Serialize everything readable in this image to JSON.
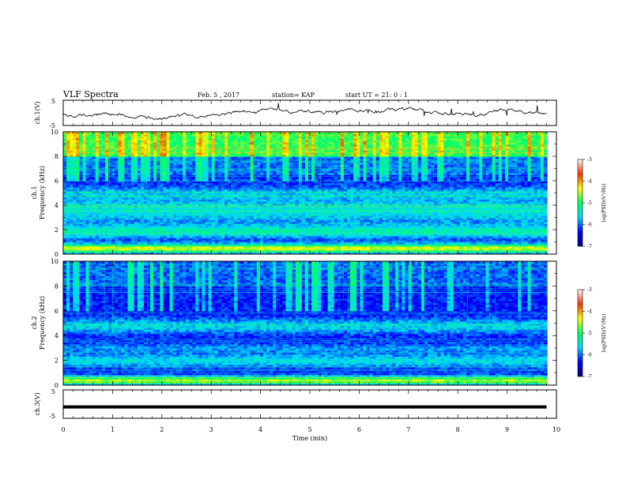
{
  "header": {
    "title": "VLF Spectra",
    "date": "Feb. 5 , 2017",
    "station": "station= KAP",
    "start_time": "start UT =   21: 0  : 1"
  },
  "chart_data": [
    {
      "type": "line",
      "ylabel": "ch.1(V)",
      "ylim": [
        -5,
        5
      ],
      "yticks": [
        "5",
        "-5"
      ],
      "xlim": [
        0,
        10
      ]
    },
    {
      "type": "heatmap",
      "ylabel_top": "ch.1",
      "ylabel": "Frequency (kHz)",
      "ylim": [
        0,
        10
      ],
      "yticks": [
        "0",
        "2",
        "4",
        "6",
        "8",
        "10"
      ],
      "xlim": [
        0,
        10
      ],
      "colorbar": {
        "label": "log(PSD)(V²/Hz)",
        "range": [
          -7,
          -3
        ],
        "ticks": [
          "-3",
          "-4",
          "-5",
          "-6",
          "-7"
        ],
        "colors": [
          "#00007f",
          "#0000ff",
          "#00d8ff",
          "#00ff66",
          "#ffff00",
          "#ff3300",
          "#ffffff"
        ]
      }
    },
    {
      "type": "heatmap",
      "ylabel_top": "ch.2",
      "ylabel": "Frequency (kHz)",
      "ylim": [
        0,
        10
      ],
      "yticks": [
        "0",
        "2",
        "4",
        "6",
        "8",
        "10"
      ],
      "xlim": [
        0,
        10
      ],
      "colorbar": {
        "label": "log(PSD)(V²/Hz)",
        "range": [
          -7,
          -3
        ],
        "ticks": [
          "-3",
          "-4",
          "-5",
          "-6",
          "-7"
        ],
        "colors": [
          "#00007f",
          "#0000ff",
          "#00d8ff",
          "#00ff66",
          "#ffff00",
          "#ff3300",
          "#ffffff"
        ]
      }
    },
    {
      "type": "line",
      "ylabel": "ch.3(V)",
      "ylim": [
        -5,
        5
      ],
      "yticks": [
        "5",
        "-5"
      ],
      "xlim": [
        0,
        10
      ],
      "series": [
        {
          "x": [
            0,
            9.8
          ],
          "y": [
            -1,
            -1
          ]
        }
      ]
    }
  ],
  "xaxis": {
    "label": "Time  (min)",
    "ticks": [
      "0",
      "1",
      "2",
      "3",
      "4",
      "5",
      "6",
      "7",
      "8",
      "9",
      "10"
    ]
  }
}
